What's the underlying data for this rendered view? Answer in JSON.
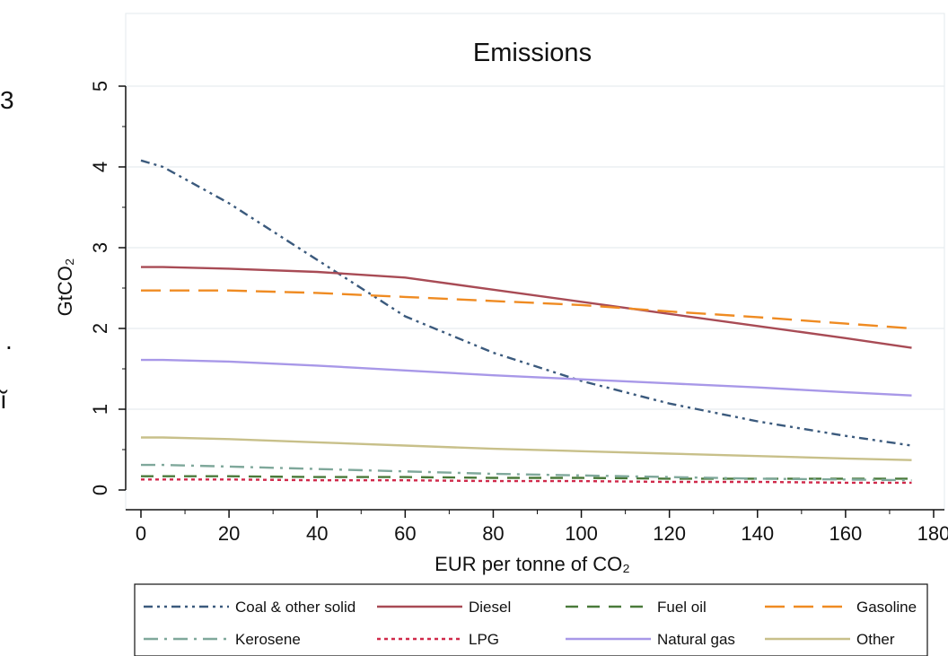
{
  "side_fragments": [
    "3",
    ".",
    "ĭ"
  ],
  "chart_data": {
    "type": "line",
    "title": "Emissions",
    "xlabel": "EUR per tonne of CO₂",
    "ylabel": "GtCO₂",
    "xlim": [
      0,
      180
    ],
    "ylim": [
      0,
      5
    ],
    "x_ticks": [
      "0",
      "20",
      "40",
      "60",
      "80",
      "100",
      "120",
      "140",
      "160",
      "180"
    ],
    "y_ticks": [
      "0",
      "1",
      "2",
      "3",
      "4",
      "5"
    ],
    "grid": true,
    "legend_position": "bottom",
    "x": [
      0,
      5,
      20,
      40,
      60,
      80,
      100,
      120,
      140,
      160,
      175
    ],
    "series": [
      {
        "name": "Coal & other solid",
        "color": "#3b5a7d",
        "dash": "dashdotdot",
        "values": [
          4.08,
          4.0,
          3.55,
          2.85,
          2.15,
          1.7,
          1.35,
          1.07,
          0.85,
          0.67,
          0.55
        ]
      },
      {
        "name": "Diesel",
        "color": "#a84b55",
        "dash": "solid",
        "values": [
          2.76,
          2.76,
          2.74,
          2.7,
          2.63,
          2.48,
          2.33,
          2.18,
          2.03,
          1.88,
          1.76
        ]
      },
      {
        "name": "Fuel oil",
        "color": "#4a7a3a",
        "dash": "dash",
        "values": [
          0.17,
          0.17,
          0.17,
          0.16,
          0.16,
          0.15,
          0.15,
          0.14,
          0.14,
          0.14,
          0.14
        ]
      },
      {
        "name": "Gasoline",
        "color": "#ef8b22",
        "dash": "longdash",
        "values": [
          2.47,
          2.47,
          2.47,
          2.44,
          2.39,
          2.34,
          2.29,
          2.21,
          2.14,
          2.06,
          2.0
        ]
      },
      {
        "name": "Kerosene",
        "color": "#7fa89b",
        "dash": "dashdot",
        "values": [
          0.31,
          0.31,
          0.29,
          0.26,
          0.23,
          0.2,
          0.18,
          0.16,
          0.14,
          0.13,
          0.12
        ]
      },
      {
        "name": "LPG",
        "color": "#d0294a",
        "dash": "dot",
        "values": [
          0.13,
          0.13,
          0.13,
          0.12,
          0.12,
          0.11,
          0.11,
          0.1,
          0.1,
          0.09,
          0.09
        ]
      },
      {
        "name": "Natural gas",
        "color": "#a898e8",
        "dash": "solid",
        "values": [
          1.61,
          1.61,
          1.59,
          1.54,
          1.48,
          1.42,
          1.37,
          1.32,
          1.27,
          1.21,
          1.17
        ]
      },
      {
        "name": "Other",
        "color": "#c8c08a",
        "dash": "solid",
        "values": [
          0.65,
          0.65,
          0.63,
          0.59,
          0.55,
          0.51,
          0.48,
          0.45,
          0.42,
          0.39,
          0.37
        ]
      }
    ]
  }
}
